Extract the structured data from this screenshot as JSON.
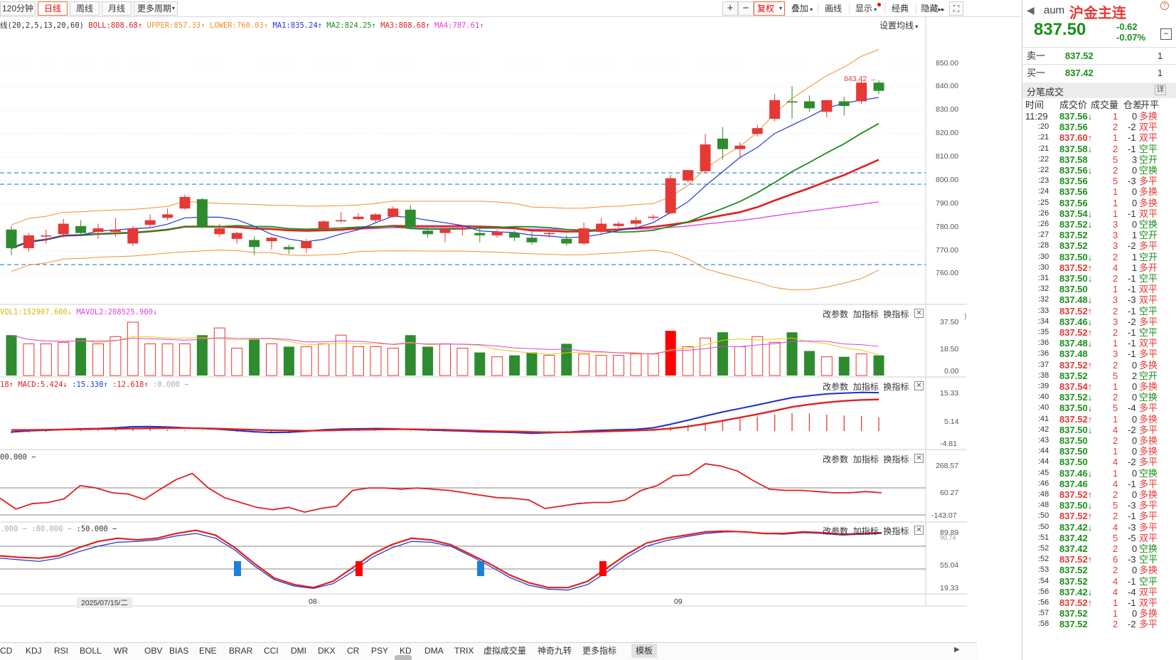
{
  "toolbar": {
    "left_items": [
      {
        "label": "120分钟",
        "active": false
      },
      {
        "label": "日线",
        "active": true
      },
      {
        "label": "周线",
        "active": false
      },
      {
        "label": "月线",
        "active": false
      },
      {
        "label": "更多周期",
        "active": false,
        "dropdown": true
      }
    ],
    "zoom_in": "+",
    "zoom_out": "−",
    "fuquan": "复权",
    "overlay": "叠加",
    "draw": "画线",
    "display": "显示",
    "classic": "经典",
    "hide": "隐藏",
    "fullscreen": "⛶"
  },
  "main_chart": {
    "legend": {
      "ma_params": "线(20,2,5,13,20,60)",
      "boll": "BOLL:808.68",
      "upper": "UPPER:857.33",
      "lower": "LOWER:760.03",
      "ma1": "MA1:835.24",
      "ma2": "MA2:824.25",
      "ma3": "MA3:808.68",
      "ma4": "MA4:787.61"
    },
    "settings_label": "设置均线",
    "price_axis": [
      "850.00",
      "840.00",
      "830.00",
      "820.00",
      "810.00",
      "800.00",
      "790.00",
      "780.00",
      "770.00",
      "760.00"
    ],
    "high_marker": "843.42",
    "colors": {
      "up": "#e53935",
      "down": "#2e8b2e",
      "ma1": "#1e3ad6",
      "ma2": "#1a8f1a",
      "ma3": "#e02020",
      "ma4": "#e040e0",
      "boll": "#f09030",
      "hline": "#3a8fd6"
    }
  },
  "volume_panel": {
    "legend": {
      "mavol1": "VOL1:152907.600",
      "mavol2": "MAVOL2:208525.900"
    },
    "axis": [
      "37.50",
      "18.50",
      "0.00"
    ],
    "controls": {
      "params": "改参数",
      "add": "加指标",
      "swap": "换指标"
    }
  },
  "macd_panel": {
    "legend": {
      "prefix": "18",
      "macd": "MACD:5.424",
      "dif": ":15.330",
      "dea": ":12.618",
      "zero": ":0.000"
    },
    "axis": [
      "15.33",
      "5.14",
      "-4.81"
    ],
    "controls": {
      "params": "改参数",
      "add": "加指标",
      "swap": "换指标"
    }
  },
  "cci_panel": {
    "legend": {
      "value": "00.000"
    },
    "axis": [
      "268.57",
      "60.27",
      "-143.07"
    ],
    "controls": {
      "params": "改参数",
      "add": "加指标",
      "swap": "换指标"
    }
  },
  "kdj_panel": {
    "legend": {
      "a": ".000",
      "b": ":80.000",
      "c": ":50.000"
    },
    "axis": [
      "89.89",
      "90.74",
      "55.04",
      "19.33"
    ],
    "controls": {
      "params": "改参数",
      "add": "加指标",
      "swap": "换指标"
    }
  },
  "time_axis": {
    "date_label": "2025/07/15/二",
    "month1": "08",
    "month2": "09"
  },
  "indicator_tabs": [
    "CD",
    "KDJ",
    "RSI",
    "BOLL",
    "WR",
    "OBV",
    "BIAS",
    "ENE",
    "BRAR",
    "CCI",
    "DMI",
    "DKX",
    "CR",
    "PSY",
    "KD",
    "DMA",
    "TRIX",
    "虚拟成交量",
    "神奇九转",
    "更多指标",
    "模板"
  ],
  "active_tab": "模板",
  "quote": {
    "code": "aum",
    "name": "沪金主连",
    "price": "837.50",
    "change": "-0.62",
    "change_pct": "-0.07%",
    "sell_label": "卖一",
    "sell_price": "837.52",
    "sell_qty": "1",
    "buy_label": "买一",
    "buy_price": "837.42",
    "buy_qty": "1",
    "ticks_title": "分笔成交",
    "ticks_detail": "详",
    "headers": [
      "时间",
      "成交价",
      "成交量",
      "仓差",
      "开平"
    ]
  },
  "ticks": [
    {
      "t": "11:29",
      "p": "837.56",
      "a": "↓",
      "v": "1",
      "d": "0",
      "k": "多换"
    },
    {
      "t": ":20",
      "p": "837.56",
      "a": "",
      "v": "2",
      "d": "-2",
      "k": "双平"
    },
    {
      "t": ":21",
      "p": "837.60",
      "a": "↑",
      "v": "1",
      "d": "-1",
      "k": "双平"
    },
    {
      "t": ":21",
      "p": "837.58",
      "a": "↓",
      "v": "2",
      "d": "-1",
      "k": "空平"
    },
    {
      "t": ":22",
      "p": "837.58",
      "a": "",
      "v": "5",
      "d": "3",
      "k": "空开"
    },
    {
      "t": ":22",
      "p": "837.56",
      "a": "↓",
      "v": "2",
      "d": "0",
      "k": "空换"
    },
    {
      "t": ":23",
      "p": "837.56",
      "a": "",
      "v": "5",
      "d": "-3",
      "k": "多平"
    },
    {
      "t": ":24",
      "p": "837.56",
      "a": "",
      "v": "1",
      "d": "0",
      "k": "多换"
    },
    {
      "t": ":25",
      "p": "837.56",
      "a": "",
      "v": "1",
      "d": "0",
      "k": "多换"
    },
    {
      "t": ":26",
      "p": "837.54",
      "a": "↓",
      "v": "1",
      "d": "-1",
      "k": "双平"
    },
    {
      "t": ":26",
      "p": "837.52",
      "a": "↓",
      "v": "3",
      "d": "0",
      "k": "空换"
    },
    {
      "t": ":27",
      "p": "837.52",
      "a": "",
      "v": "3",
      "d": "1",
      "k": "空开"
    },
    {
      "t": ":28",
      "p": "837.52",
      "a": "",
      "v": "3",
      "d": "-2",
      "k": "多平"
    },
    {
      "t": ":30",
      "p": "837.50",
      "a": "↓",
      "v": "2",
      "d": "1",
      "k": "空开"
    },
    {
      "t": ":30",
      "p": "837.52",
      "a": "↑",
      "v": "4",
      "d": "1",
      "k": "多开"
    },
    {
      "t": ":31",
      "p": "837.50",
      "a": "↓",
      "v": "2",
      "d": "-1",
      "k": "空平"
    },
    {
      "t": ":32",
      "p": "837.50",
      "a": "",
      "v": "1",
      "d": "-1",
      "k": "双平"
    },
    {
      "t": ":32",
      "p": "837.48",
      "a": "↓",
      "v": "3",
      "d": "-3",
      "k": "双平"
    },
    {
      "t": ":33",
      "p": "837.52",
      "a": "↑",
      "v": "2",
      "d": "-1",
      "k": "空平"
    },
    {
      "t": ":34",
      "p": "837.46",
      "a": "↓",
      "v": "3",
      "d": "-2",
      "k": "多平"
    },
    {
      "t": ":35",
      "p": "837.52",
      "a": "↑",
      "v": "2",
      "d": "-1",
      "k": "空平"
    },
    {
      "t": ":36",
      "p": "837.48",
      "a": "↓",
      "v": "1",
      "d": "-1",
      "k": "双平"
    },
    {
      "t": ":36",
      "p": "837.48",
      "a": "",
      "v": "3",
      "d": "-1",
      "k": "多平"
    },
    {
      "t": ":37",
      "p": "837.52",
      "a": "↑",
      "v": "2",
      "d": "0",
      "k": "多换"
    },
    {
      "t": ":38",
      "p": "837.52",
      "a": "",
      "v": "5",
      "d": "2",
      "k": "空开"
    },
    {
      "t": ":39",
      "p": "837.54",
      "a": "↑",
      "v": "1",
      "d": "0",
      "k": "多换"
    },
    {
      "t": ":40",
      "p": "837.52",
      "a": "↓",
      "v": "2",
      "d": "0",
      "k": "空换"
    },
    {
      "t": ":40",
      "p": "837.50",
      "a": "↓",
      "v": "5",
      "d": "-4",
      "k": "多平"
    },
    {
      "t": ":41",
      "p": "837.52",
      "a": "↑",
      "v": "1",
      "d": "0",
      "k": "多换"
    },
    {
      "t": ":42",
      "p": "837.50",
      "a": "↓",
      "v": "4",
      "d": "-2",
      "k": "多平"
    },
    {
      "t": ":43",
      "p": "837.50",
      "a": "",
      "v": "2",
      "d": "0",
      "k": "多换"
    },
    {
      "t": ":44",
      "p": "837.50",
      "a": "",
      "v": "1",
      "d": "0",
      "k": "多换"
    },
    {
      "t": ":44",
      "p": "837.50",
      "a": "",
      "v": "4",
      "d": "-2",
      "k": "多平"
    },
    {
      "t": ":45",
      "p": "837.46",
      "a": "↓",
      "v": "1",
      "d": "0",
      "k": "空换"
    },
    {
      "t": ":46",
      "p": "837.46",
      "a": "",
      "v": "4",
      "d": "-1",
      "k": "多平"
    },
    {
      "t": ":48",
      "p": "837.52",
      "a": "↑",
      "v": "2",
      "d": "0",
      "k": "多换"
    },
    {
      "t": ":48",
      "p": "837.50",
      "a": "↓",
      "v": "5",
      "d": "-3",
      "k": "多平"
    },
    {
      "t": ":50",
      "p": "837.52",
      "a": "↑",
      "v": "2",
      "d": "-1",
      "k": "多平"
    },
    {
      "t": ":50",
      "p": "837.42",
      "a": "↓",
      "v": "4",
      "d": "-3",
      "k": "多平"
    },
    {
      "t": ":51",
      "p": "837.42",
      "a": "",
      "v": "5",
      "d": "-5",
      "k": "双平"
    },
    {
      "t": ":52",
      "p": "837.42",
      "a": "",
      "v": "2",
      "d": "0",
      "k": "空换"
    },
    {
      "t": ":52",
      "p": "837.52",
      "a": "↑",
      "v": "6",
      "d": "-3",
      "k": "空平"
    },
    {
      "t": ":53",
      "p": "837.52",
      "a": "",
      "v": "2",
      "d": "0",
      "k": "多换"
    },
    {
      "t": ":54",
      "p": "837.52",
      "a": "",
      "v": "4",
      "d": "-1",
      "k": "空平"
    },
    {
      "t": ":56",
      "p": "837.42",
      "a": "↓",
      "v": "4",
      "d": "-4",
      "k": "双平"
    },
    {
      "t": ":56",
      "p": "837.52",
      "a": "↑",
      "v": "1",
      "d": "-1",
      "k": "双平"
    },
    {
      "t": ":57",
      "p": "837.52",
      "a": "",
      "v": "1",
      "d": "0",
      "k": "多换"
    },
    {
      "t": ":58",
      "p": "837.52",
      "a": "",
      "v": "2",
      "d": "-2",
      "k": "多平"
    }
  ],
  "candles": [
    {
      "o": 779.0,
      "h": 780.5,
      "l": 768.0,
      "c": 771.0
    },
    {
      "o": 771.0,
      "h": 777.5,
      "l": 769.5,
      "c": 776.5
    },
    {
      "o": 776.0,
      "h": 779.0,
      "l": 773.0,
      "c": 776.5
    },
    {
      "o": 777.0,
      "h": 783.5,
      "l": 775.5,
      "c": 781.5
    },
    {
      "o": 780.5,
      "h": 783.0,
      "l": 776.5,
      "c": 777.5
    },
    {
      "o": 778.0,
      "h": 781.5,
      "l": 775.0,
      "c": 779.5
    },
    {
      "o": 778.0,
      "h": 784.0,
      "l": 776.0,
      "c": 779.0
    },
    {
      "o": 773.0,
      "h": 780.5,
      "l": 772.0,
      "c": 779.5
    },
    {
      "o": 781.0,
      "h": 785.5,
      "l": 779.5,
      "c": 783.0
    },
    {
      "o": 784.0,
      "h": 788.0,
      "l": 783.0,
      "c": 785.5
    },
    {
      "o": 788.0,
      "h": 794.0,
      "l": 787.5,
      "c": 793.0
    },
    {
      "o": 792.0,
      "h": 792.5,
      "l": 779.5,
      "c": 780.5
    },
    {
      "o": 777.0,
      "h": 781.5,
      "l": 776.0,
      "c": 779.5
    },
    {
      "o": 775.0,
      "h": 778.0,
      "l": 773.0,
      "c": 777.5
    },
    {
      "o": 774.5,
      "h": 776.0,
      "l": 768.0,
      "c": 771.5
    },
    {
      "o": 774.0,
      "h": 776.0,
      "l": 770.5,
      "c": 775.5
    },
    {
      "o": 771.5,
      "h": 772.5,
      "l": 768.5,
      "c": 770.5
    },
    {
      "o": 771.0,
      "h": 775.0,
      "l": 769.0,
      "c": 774.0
    },
    {
      "o": 779.5,
      "h": 783.0,
      "l": 779.0,
      "c": 782.5
    },
    {
      "o": 782.5,
      "h": 786.5,
      "l": 782.0,
      "c": 783.0
    },
    {
      "o": 783.5,
      "h": 786.0,
      "l": 783.0,
      "c": 784.5
    },
    {
      "o": 783.0,
      "h": 786.0,
      "l": 782.0,
      "c": 785.5
    },
    {
      "o": 784.5,
      "h": 789.0,
      "l": 784.0,
      "c": 788.0
    },
    {
      "o": 787.5,
      "h": 789.5,
      "l": 779.5,
      "c": 780.0
    },
    {
      "o": 778.5,
      "h": 780.0,
      "l": 775.5,
      "c": 777.0
    },
    {
      "o": 777.5,
      "h": 779.5,
      "l": 773.5,
      "c": 779.0
    },
    {
      "o": 779.0,
      "h": 781.0,
      "l": 776.5,
      "c": 779.5
    },
    {
      "o": 777.5,
      "h": 779.5,
      "l": 773.5,
      "c": 776.5
    },
    {
      "o": 776.5,
      "h": 779.0,
      "l": 775.5,
      "c": 778.0
    },
    {
      "o": 777.5,
      "h": 778.5,
      "l": 774.0,
      "c": 775.5
    },
    {
      "o": 775.5,
      "h": 778.5,
      "l": 772.5,
      "c": 773.5
    },
    {
      "o": 777.0,
      "h": 778.5,
      "l": 775.5,
      "c": 777.5
    },
    {
      "o": 775.0,
      "h": 776.5,
      "l": 772.0,
      "c": 773.0
    },
    {
      "o": 773.0,
      "h": 782.0,
      "l": 772.5,
      "c": 779.5
    },
    {
      "o": 778.0,
      "h": 784.0,
      "l": 777.0,
      "c": 781.5
    },
    {
      "o": 780.5,
      "h": 782.5,
      "l": 778.5,
      "c": 781.5
    },
    {
      "o": 781.5,
      "h": 784.5,
      "l": 780.0,
      "c": 783.0
    },
    {
      "o": 784.0,
      "h": 785.5,
      "l": 783.0,
      "c": 784.5
    },
    {
      "o": 786.0,
      "h": 802.5,
      "l": 785.5,
      "c": 801.0
    },
    {
      "o": 800.0,
      "h": 804.5,
      "l": 799.0,
      "c": 804.5
    },
    {
      "o": 804.0,
      "h": 820.0,
      "l": 803.0,
      "c": 815.5
    },
    {
      "o": 818.0,
      "h": 823.0,
      "l": 809.0,
      "c": 813.5
    },
    {
      "o": 813.5,
      "h": 816.5,
      "l": 810.0,
      "c": 815.0
    },
    {
      "o": 820.0,
      "h": 824.0,
      "l": 819.0,
      "c": 822.5
    },
    {
      "o": 826.5,
      "h": 837.0,
      "l": 825.5,
      "c": 834.5
    },
    {
      "o": 834.0,
      "h": 840.5,
      "l": 826.5,
      "c": 833.5
    },
    {
      "o": 834.0,
      "h": 836.5,
      "l": 829.5,
      "c": 831.0
    },
    {
      "o": 829.5,
      "h": 834.0,
      "l": 827.0,
      "c": 834.5
    },
    {
      "o": 834.0,
      "h": 836.0,
      "l": 828.0,
      "c": 832.0
    },
    {
      "o": 834.0,
      "h": 843.4,
      "l": 833.0,
      "c": 842.0
    },
    {
      "o": 842.0,
      "h": 843.0,
      "l": 837.0,
      "c": 838.5
    }
  ],
  "volumes": [
    28,
    22,
    22,
    23,
    26,
    22,
    27,
    37,
    22,
    22,
    22,
    28,
    33,
    19,
    25,
    22,
    20,
    20,
    22,
    28,
    20,
    20,
    19,
    28,
    20,
    22,
    19,
    16,
    13,
    14,
    16,
    14,
    22,
    15,
    14,
    14,
    15,
    15,
    31,
    20,
    26,
    30,
    20,
    27,
    23,
    30,
    17,
    13,
    13,
    15,
    14
  ],
  "macd_bars": [
    -1.0,
    -0.6,
    -0.4,
    0.1,
    0.4,
    0.3,
    0.6,
    1.0,
    0.9,
    0.6,
    0.3,
    0.2,
    0.1,
    -0.3,
    -0.6,
    -1.0,
    -0.9,
    -0.4,
    0.1,
    0.3,
    0.2,
    0.2,
    0.1,
    -0.2,
    -0.2,
    -0.2,
    -0.3,
    -0.4,
    -0.5,
    -0.6,
    -0.9,
    -0.6,
    -0.3,
    0.2,
    0.3,
    0.3,
    0.4,
    0.6,
    1.6,
    2.4,
    3.4,
    4.2,
    5.0,
    5.8,
    6.6,
    7.2,
    7.0,
    6.6,
    6.2,
    6.0,
    5.4
  ],
  "dif": [
    -0.4,
    0.1,
    0.3,
    0.6,
    0.9,
    1.0,
    1.3,
    1.7,
    1.8,
    1.6,
    1.3,
    1.0,
    0.7,
    0.2,
    -0.3,
    -0.6,
    -0.5,
    -0.1,
    0.5,
    0.8,
    0.9,
    1.0,
    0.9,
    0.6,
    0.4,
    0.2,
    0.0,
    -0.3,
    -0.4,
    -0.6,
    -0.9,
    -0.7,
    -0.5,
    0.0,
    0.3,
    0.5,
    0.7,
    1.3,
    2.7,
    4.3,
    6.0,
    7.6,
    9.0,
    10.4,
    11.9,
    13.3,
    14.1,
    14.8,
    15.1,
    15.4,
    15.3
  ],
  "dea": [
    0.4,
    0.4,
    0.5,
    0.6,
    0.7,
    0.8,
    0.9,
    1.0,
    1.1,
    1.2,
    1.2,
    1.1,
    0.9,
    0.7,
    0.5,
    0.3,
    0.2,
    0.1,
    0.2,
    0.4,
    0.5,
    0.6,
    0.7,
    0.7,
    0.6,
    0.5,
    0.3,
    0.1,
    -0.1,
    -0.2,
    -0.4,
    -0.5,
    -0.5,
    -0.4,
    -0.2,
    0.0,
    0.2,
    0.5,
    1.0,
    1.8,
    2.9,
    4.1,
    5.4,
    6.7,
    8.1,
    9.6,
    10.6,
    11.4,
    12.0,
    12.4,
    12.6
  ],
  "cci": [
    -5,
    -95,
    -50,
    -40,
    -10,
    100,
    80,
    40,
    30,
    -15,
    70,
    150,
    200,
    80,
    0,
    -40,
    -80,
    -100,
    -80,
    -120,
    -90,
    -70,
    60,
    80,
    80,
    70,
    80,
    70,
    60,
    40,
    20,
    0,
    -5,
    -20,
    -90,
    -70,
    -50,
    -40,
    -40,
    -20,
    60,
    100,
    180,
    190,
    280,
    260,
    220,
    140,
    70,
    60,
    60,
    50,
    40,
    40,
    50,
    40
  ],
  "kdj_k": [
    60,
    58,
    57,
    60,
    70,
    78,
    82,
    80,
    82,
    88,
    92,
    86,
    70,
    50,
    32,
    24,
    20,
    28,
    45,
    62,
    74,
    82,
    80,
    74,
    62,
    50,
    36,
    26,
    20,
    20,
    28,
    45,
    62,
    76,
    82,
    86,
    90,
    91,
    90,
    88,
    88,
    90,
    89,
    87,
    88,
    89
  ],
  "kdj_d": [
    57,
    55,
    53,
    57,
    65,
    72,
    77,
    78,
    80,
    85,
    88,
    82,
    67,
    47,
    30,
    22,
    19,
    25,
    40,
    58,
    70,
    78,
    77,
    72,
    60,
    47,
    33,
    23,
    18,
    17,
    24,
    40,
    58,
    72,
    79,
    84,
    88,
    90,
    90,
    88,
    87,
    89,
    88,
    86,
    87,
    88
  ]
}
